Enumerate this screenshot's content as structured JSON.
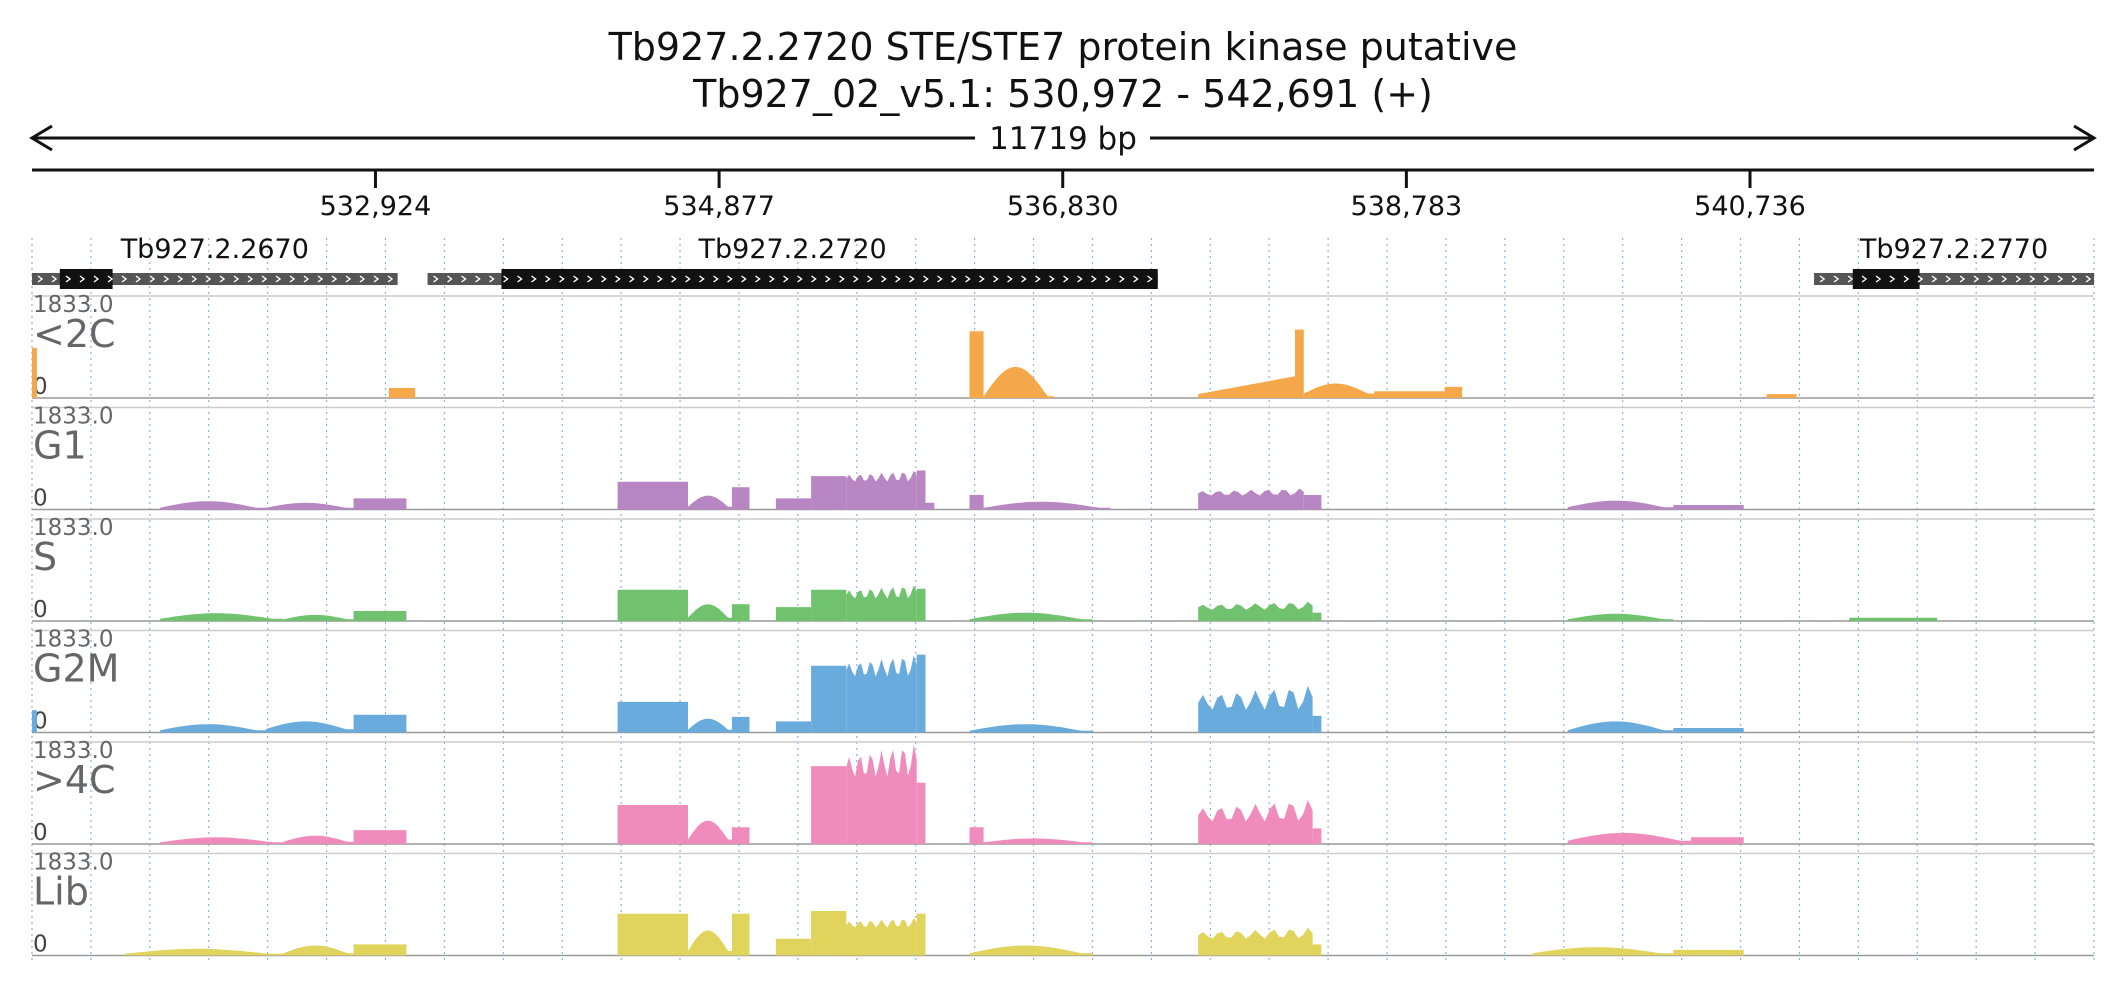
{
  "title": {
    "line1": "Tb927.2.2720  STE/STE7 protein kinase  putative",
    "line2": "Tb927_02_v5.1: 530,972 - 542,691 (+)"
  },
  "scale_label": "11719 bp",
  "chart_data": {
    "type": "area",
    "xlim": [
      530972,
      542691
    ],
    "ticks": [
      {
        "value": 532924,
        "label": "532,924"
      },
      {
        "value": 534877,
        "label": "534,877"
      },
      {
        "value": 536830,
        "label": "536,830"
      },
      {
        "value": 538783,
        "label": "538,783"
      },
      {
        "value": 540736,
        "label": "540,736"
      }
    ],
    "genes": [
      {
        "name": "Tb927.2.2670",
        "start": 530972,
        "end": 533050,
        "cds_start": 531130,
        "cds_end": 531430,
        "strand": "+"
      },
      {
        "name": "Tb927.2.2720",
        "start": 533220,
        "end": 537370,
        "cds_start": 533640,
        "cds_end": 538140,
        "strand": "+"
      },
      {
        "name": "Tb927.2.2770",
        "start": 541100,
        "end": 542691,
        "cds_start": 541320,
        "cds_end": 541700,
        "strand": "+"
      }
    ],
    "ylim": [
      0,
      1833.0
    ],
    "y_max_label": "1833.0",
    "y_min_label": "0",
    "series": [
      {
        "name": "<2C",
        "color": "#f5a84a",
        "segments": [
          {
            "from": 530972,
            "to": 531000,
            "shape": "flat",
            "peak": 900,
            "end": 900
          },
          {
            "from": 533000,
            "to": 533150,
            "shape": "flat",
            "peak": 180,
            "end": 180
          },
          {
            "from": 536300,
            "to": 536380,
            "shape": "flat",
            "peak": 1200,
            "end": 1200
          },
          {
            "from": 536380,
            "to": 536780,
            "shape": "hump",
            "peak": 560,
            "end": 30
          },
          {
            "from": 537600,
            "to": 538150,
            "shape": "ramp",
            "peak": 470,
            "end": 390
          },
          {
            "from": 538150,
            "to": 538200,
            "shape": "flat",
            "peak": 1230,
            "end": 1230
          },
          {
            "from": 538200,
            "to": 538600,
            "shape": "hump",
            "peak": 260,
            "end": 80
          },
          {
            "from": 538600,
            "to": 539000,
            "shape": "flat",
            "peak": 120,
            "end": 120
          },
          {
            "from": 539000,
            "to": 539100,
            "shape": "flat",
            "peak": 200,
            "end": 200
          },
          {
            "from": 540830,
            "to": 541000,
            "shape": "flat",
            "peak": 70,
            "end": 70
          }
        ]
      },
      {
        "name": "G1",
        "color": "#b886c2",
        "segments": [
          {
            "from": 531700,
            "to": 532300,
            "shape": "hump",
            "peak": 150,
            "end": 30
          },
          {
            "from": 532300,
            "to": 532800,
            "shape": "hump",
            "peak": 120,
            "end": 30
          },
          {
            "from": 532800,
            "to": 533100,
            "shape": "flat",
            "peak": 200,
            "end": 200
          },
          {
            "from": 534300,
            "to": 534700,
            "shape": "flat",
            "peak": 500,
            "end": 500
          },
          {
            "from": 534700,
            "to": 534950,
            "shape": "hump",
            "peak": 250,
            "end": 50
          },
          {
            "from": 534950,
            "to": 535050,
            "shape": "flat",
            "peak": 400,
            "end": 400
          },
          {
            "from": 535200,
            "to": 535400,
            "shape": "flat",
            "peak": 200,
            "end": 200
          },
          {
            "from": 535400,
            "to": 535600,
            "shape": "flat",
            "peak": 600,
            "end": 600
          },
          {
            "from": 535600,
            "to": 536000,
            "shape": "jag",
            "peak": 700,
            "end": 500
          },
          {
            "from": 536000,
            "to": 536050,
            "shape": "flat",
            "peak": 700,
            "end": 700
          },
          {
            "from": 536050,
            "to": 536100,
            "shape": "flat",
            "peak": 120,
            "end": 120
          },
          {
            "from": 536300,
            "to": 536380,
            "shape": "flat",
            "peak": 260,
            "end": 260
          },
          {
            "from": 536380,
            "to": 537100,
            "shape": "hump",
            "peak": 140,
            "end": 30
          },
          {
            "from": 537600,
            "to": 538200,
            "shape": "jag",
            "peak": 380,
            "end": 250
          },
          {
            "from": 538200,
            "to": 538300,
            "shape": "flat",
            "peak": 260,
            "end": 260
          },
          {
            "from": 539700,
            "to": 540300,
            "shape": "hump",
            "peak": 160,
            "end": 40
          },
          {
            "from": 540300,
            "to": 540700,
            "shape": "flat",
            "peak": 80,
            "end": 80
          }
        ]
      },
      {
        "name": "S",
        "color": "#71c26e",
        "segments": [
          {
            "from": 531700,
            "to": 532400,
            "shape": "hump",
            "peak": 140,
            "end": 40
          },
          {
            "from": 532400,
            "to": 532800,
            "shape": "hump",
            "peak": 110,
            "end": 30
          },
          {
            "from": 532800,
            "to": 533100,
            "shape": "flat",
            "peak": 180,
            "end": 180
          },
          {
            "from": 534300,
            "to": 534700,
            "shape": "flat",
            "peak": 560,
            "end": 560
          },
          {
            "from": 534700,
            "to": 534950,
            "shape": "hump",
            "peak": 300,
            "end": 60
          },
          {
            "from": 534950,
            "to": 535050,
            "shape": "flat",
            "peak": 300,
            "end": 300
          },
          {
            "from": 535200,
            "to": 535400,
            "shape": "flat",
            "peak": 250,
            "end": 250
          },
          {
            "from": 535400,
            "to": 535600,
            "shape": "flat",
            "peak": 560,
            "end": 560
          },
          {
            "from": 535600,
            "to": 536000,
            "shape": "jag",
            "peak": 650,
            "end": 400
          },
          {
            "from": 536000,
            "to": 536050,
            "shape": "flat",
            "peak": 580,
            "end": 580
          },
          {
            "from": 536300,
            "to": 537000,
            "shape": "hump",
            "peak": 150,
            "end": 30
          },
          {
            "from": 537600,
            "to": 538250,
            "shape": "jag",
            "peak": 350,
            "end": 200
          },
          {
            "from": 538250,
            "to": 538300,
            "shape": "flat",
            "peak": 150,
            "end": 150
          },
          {
            "from": 539700,
            "to": 540300,
            "shape": "hump",
            "peak": 130,
            "end": 30
          },
          {
            "from": 541300,
            "to": 541800,
            "shape": "flat",
            "peak": 60,
            "end": 60
          }
        ]
      },
      {
        "name": "G2M",
        "color": "#6aabdd",
        "segments": [
          {
            "from": 530972,
            "to": 531000,
            "shape": "flat",
            "peak": 400,
            "end": 400
          },
          {
            "from": 531700,
            "to": 532300,
            "shape": "hump",
            "peak": 150,
            "end": 40
          },
          {
            "from": 532300,
            "to": 532800,
            "shape": "hump",
            "peak": 200,
            "end": 60
          },
          {
            "from": 532800,
            "to": 533100,
            "shape": "flat",
            "peak": 320,
            "end": 320
          },
          {
            "from": 534300,
            "to": 534700,
            "shape": "flat",
            "peak": 550,
            "end": 550
          },
          {
            "from": 534700,
            "to": 534950,
            "shape": "hump",
            "peak": 250,
            "end": 50
          },
          {
            "from": 534950,
            "to": 535050,
            "shape": "flat",
            "peak": 280,
            "end": 280
          },
          {
            "from": 535200,
            "to": 535400,
            "shape": "flat",
            "peak": 200,
            "end": 200
          },
          {
            "from": 535400,
            "to": 535600,
            "shape": "flat",
            "peak": 1200,
            "end": 1200
          },
          {
            "from": 535600,
            "to": 536000,
            "shape": "jag",
            "peak": 1400,
            "end": 1000
          },
          {
            "from": 536000,
            "to": 536050,
            "shape": "flat",
            "peak": 1400,
            "end": 1400
          },
          {
            "from": 536300,
            "to": 537000,
            "shape": "hump",
            "peak": 150,
            "end": 30
          },
          {
            "from": 537600,
            "to": 538250,
            "shape": "jag",
            "peak": 850,
            "end": 400
          },
          {
            "from": 538250,
            "to": 538300,
            "shape": "flat",
            "peak": 300,
            "end": 300
          },
          {
            "from": 539700,
            "to": 540300,
            "shape": "hump",
            "peak": 200,
            "end": 40
          },
          {
            "from": 540300,
            "to": 540700,
            "shape": "flat",
            "peak": 80,
            "end": 80
          }
        ]
      },
      {
        "name": ">4C",
        "color": "#f08cbc",
        "segments": [
          {
            "from": 531700,
            "to": 532400,
            "shape": "hump",
            "peak": 120,
            "end": 30
          },
          {
            "from": 532400,
            "to": 532800,
            "shape": "hump",
            "peak": 150,
            "end": 40
          },
          {
            "from": 532800,
            "to": 533100,
            "shape": "flat",
            "peak": 250,
            "end": 250
          },
          {
            "from": 534300,
            "to": 534700,
            "shape": "flat",
            "peak": 700,
            "end": 700
          },
          {
            "from": 534700,
            "to": 534950,
            "shape": "hump",
            "peak": 420,
            "end": 80
          },
          {
            "from": 534950,
            "to": 535050,
            "shape": "flat",
            "peak": 300,
            "end": 300
          },
          {
            "from": 535400,
            "to": 535600,
            "shape": "flat",
            "peak": 1400,
            "end": 1400
          },
          {
            "from": 535600,
            "to": 536000,
            "shape": "jag",
            "peak": 1800,
            "end": 1200
          },
          {
            "from": 536000,
            "to": 536050,
            "shape": "flat",
            "peak": 1100,
            "end": 1100
          },
          {
            "from": 536300,
            "to": 536380,
            "shape": "flat",
            "peak": 300,
            "end": 300
          },
          {
            "from": 536380,
            "to": 537000,
            "shape": "hump",
            "peak": 100,
            "end": 30
          },
          {
            "from": 537600,
            "to": 538250,
            "shape": "jag",
            "peak": 800,
            "end": 400
          },
          {
            "from": 538250,
            "to": 538300,
            "shape": "flat",
            "peak": 280,
            "end": 280
          },
          {
            "from": 539700,
            "to": 540400,
            "shape": "hump",
            "peak": 200,
            "end": 60
          },
          {
            "from": 540400,
            "to": 540700,
            "shape": "flat",
            "peak": 120,
            "end": 120
          }
        ]
      },
      {
        "name": "Lib",
        "color": "#e0d45c",
        "segments": [
          {
            "from": 531500,
            "to": 532400,
            "shape": "hump",
            "peak": 120,
            "end": 30
          },
          {
            "from": 532400,
            "to": 532800,
            "shape": "hump",
            "peak": 180,
            "end": 40
          },
          {
            "from": 532800,
            "to": 533100,
            "shape": "flat",
            "peak": 200,
            "end": 200
          },
          {
            "from": 534300,
            "to": 534700,
            "shape": "flat",
            "peak": 750,
            "end": 750
          },
          {
            "from": 534700,
            "to": 534950,
            "shape": "hump",
            "peak": 450,
            "end": 80
          },
          {
            "from": 534950,
            "to": 535050,
            "shape": "flat",
            "peak": 750,
            "end": 750
          },
          {
            "from": 535200,
            "to": 535400,
            "shape": "flat",
            "peak": 300,
            "end": 300
          },
          {
            "from": 535400,
            "to": 535600,
            "shape": "flat",
            "peak": 800,
            "end": 800
          },
          {
            "from": 535600,
            "to": 536000,
            "shape": "jag",
            "peak": 680,
            "end": 500
          },
          {
            "from": 536000,
            "to": 536050,
            "shape": "flat",
            "peak": 750,
            "end": 750
          },
          {
            "from": 536300,
            "to": 537000,
            "shape": "hump",
            "peak": 180,
            "end": 40
          },
          {
            "from": 537600,
            "to": 538250,
            "shape": "jag",
            "peak": 500,
            "end": 300
          },
          {
            "from": 538250,
            "to": 538300,
            "shape": "flat",
            "peak": 200,
            "end": 200
          },
          {
            "from": 539500,
            "to": 540300,
            "shape": "hump",
            "peak": 150,
            "end": 40
          },
          {
            "from": 540300,
            "to": 540700,
            "shape": "flat",
            "peak": 100,
            "end": 100
          }
        ]
      }
    ]
  }
}
